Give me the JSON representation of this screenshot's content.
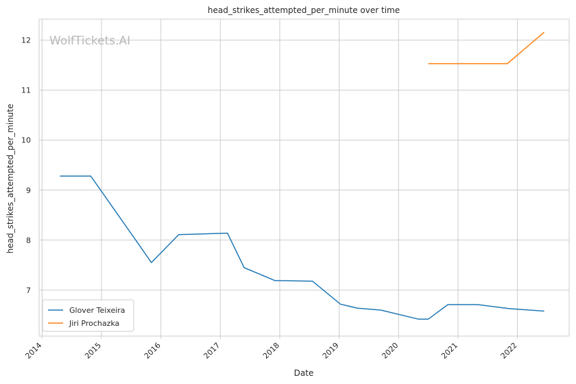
{
  "chart_data": {
    "type": "line",
    "title": "head_strikes_attempted_per_minute over time",
    "xlabel": "Date",
    "ylabel": "head_strikes_attempted_per_minute",
    "x_ticks": [
      "2014",
      "2015",
      "2016",
      "2017",
      "2018",
      "2019",
      "2020",
      "2021",
      "2022"
    ],
    "y_ticks": [
      7,
      8,
      9,
      10,
      11,
      12
    ],
    "xlim": [
      2013.95,
      2022.87
    ],
    "ylim": [
      6.08,
      12.42
    ],
    "grid": true,
    "legend_position": "lower-left",
    "watermark": "WolfTickets.AI",
    "series": [
      {
        "name": "Glover Teixeira",
        "color": "#1f77b4",
        "points": [
          [
            2014.3,
            9.28
          ],
          [
            2014.82,
            9.28
          ],
          [
            2015.6,
            7.96
          ],
          [
            2015.84,
            7.55
          ],
          [
            2016.3,
            8.11
          ],
          [
            2016.6,
            8.12
          ],
          [
            2017.12,
            8.14
          ],
          [
            2017.4,
            7.45
          ],
          [
            2017.92,
            7.19
          ],
          [
            2018.55,
            7.18
          ],
          [
            2019.02,
            6.72
          ],
          [
            2019.3,
            6.64
          ],
          [
            2019.7,
            6.6
          ],
          [
            2020.33,
            6.42
          ],
          [
            2020.5,
            6.42
          ],
          [
            2020.83,
            6.71
          ],
          [
            2021.33,
            6.71
          ],
          [
            2021.85,
            6.63
          ],
          [
            2022.45,
            6.58
          ]
        ]
      },
      {
        "name": "Jiri Prochazka",
        "color": "#ff7f0e",
        "points": [
          [
            2020.5,
            11.53
          ],
          [
            2021.83,
            11.53
          ],
          [
            2022.45,
            12.16
          ]
        ]
      }
    ]
  }
}
